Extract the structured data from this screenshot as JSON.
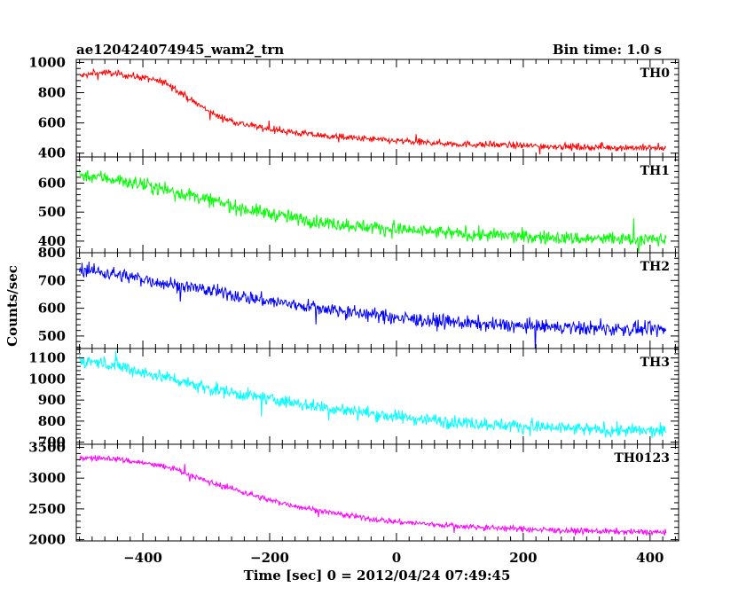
{
  "header": {
    "title": "ae120424074945_wam2_trn",
    "bin_time": "Bin time: 1.0 s"
  },
  "axes": {
    "xlabel": "Time [sec] 0 = 2012/04/24 07:49:45",
    "ylabel": "Counts/sec"
  },
  "chart_data": {
    "type": "line",
    "title": "ae120424074945_wam2_trn",
    "xlabel": "Time [sec] 0 = 2012/04/24 07:49:45",
    "ylabel": "Counts/sec",
    "xlim": [
      -505,
      445
    ],
    "x_range_of_data": [
      -500,
      425
    ],
    "x_step": 1.0,
    "x_ticks": [
      -400,
      -200,
      0,
      200,
      400
    ],
    "x_tick_labels": [
      "−400",
      "−200",
      "0",
      "200",
      "400"
    ],
    "grid": false,
    "panels": [
      {
        "name": "TH0",
        "color": "#ff0000",
        "ylim": [
          375,
          1020
        ],
        "yticks": [
          400,
          600,
          800,
          1000
        ],
        "ytick_labels": [
          "400",
          "600",
          "800",
          "1000"
        ],
        "trend": [
          [
            -500,
            910
          ],
          [
            -460,
            935
          ],
          [
            -400,
            900
          ],
          [
            -360,
            860
          ],
          [
            -320,
            740
          ],
          [
            -280,
            640
          ],
          [
            -240,
            590
          ],
          [
            -200,
            560
          ],
          [
            -150,
            530
          ],
          [
            -100,
            510
          ],
          [
            -50,
            495
          ],
          [
            0,
            480
          ],
          [
            100,
            460
          ],
          [
            200,
            450
          ],
          [
            300,
            440
          ],
          [
            425,
            435
          ]
        ],
        "noise_amplitude": 28
      },
      {
        "name": "TH1",
        "color": "#00ff00",
        "ylim": [
          360,
          690
        ],
        "yticks": [
          400,
          500,
          600
        ],
        "ytick_labels": [
          "400",
          "500",
          "600"
        ],
        "trend": [
          [
            -500,
            630
          ],
          [
            -450,
            615
          ],
          [
            -400,
            595
          ],
          [
            -350,
            570
          ],
          [
            -300,
            545
          ],
          [
            -250,
            515
          ],
          [
            -200,
            495
          ],
          [
            -150,
            475
          ],
          [
            -100,
            460
          ],
          [
            -50,
            450
          ],
          [
            0,
            440
          ],
          [
            100,
            425
          ],
          [
            200,
            415
          ],
          [
            300,
            408
          ],
          [
            425,
            405
          ]
        ],
        "noise_amplitude": 30
      },
      {
        "name": "TH2",
        "color": "#0000ff",
        "ylim": [
          455,
          800
        ],
        "yticks": [
          500,
          600,
          700,
          800
        ],
        "ytick_labels": [
          "500",
          "600",
          "700",
          "800"
        ],
        "trend": [
          [
            -500,
            740
          ],
          [
            -450,
            725
          ],
          [
            -400,
            705
          ],
          [
            -350,
            685
          ],
          [
            -300,
            665
          ],
          [
            -250,
            645
          ],
          [
            -200,
            625
          ],
          [
            -150,
            610
          ],
          [
            -100,
            595
          ],
          [
            -50,
            580
          ],
          [
            0,
            565
          ],
          [
            100,
            548
          ],
          [
            200,
            535
          ],
          [
            300,
            528
          ],
          [
            425,
            522
          ]
        ],
        "noise_amplitude": 32
      },
      {
        "name": "TH3",
        "color": "#00ffff",
        "ylim": [
          690,
          1145
        ],
        "yticks": [
          700,
          800,
          900,
          1000,
          1100
        ],
        "ytick_labels": [
          "700",
          "800",
          "900",
          "1000",
          "1100"
        ],
        "trend": [
          [
            -500,
            1090
          ],
          [
            -450,
            1070
          ],
          [
            -400,
            1030
          ],
          [
            -350,
            1000
          ],
          [
            -300,
            960
          ],
          [
            -250,
            930
          ],
          [
            -200,
            905
          ],
          [
            -150,
            880
          ],
          [
            -100,
            860
          ],
          [
            -50,
            840
          ],
          [
            0,
            820
          ],
          [
            100,
            795
          ],
          [
            200,
            775
          ],
          [
            300,
            760
          ],
          [
            425,
            750
          ]
        ],
        "noise_amplitude": 40
      },
      {
        "name": "TH0123",
        "color": "#ff00ff",
        "ylim": [
          1980,
          3550
        ],
        "yticks": [
          2000,
          2500,
          3000,
          3500
        ],
        "ytick_labels": [
          "2000",
          "2500",
          "3000",
          "3500"
        ],
        "trend": [
          [
            -500,
            3330
          ],
          [
            -450,
            3320
          ],
          [
            -400,
            3250
          ],
          [
            -350,
            3150
          ],
          [
            -300,
            2950
          ],
          [
            -250,
            2800
          ],
          [
            -200,
            2640
          ],
          [
            -150,
            2530
          ],
          [
            -100,
            2430
          ],
          [
            -50,
            2350
          ],
          [
            0,
            2290
          ],
          [
            100,
            2220
          ],
          [
            200,
            2170
          ],
          [
            300,
            2140
          ],
          [
            425,
            2120
          ]
        ],
        "noise_amplitude": 60
      }
    ]
  }
}
